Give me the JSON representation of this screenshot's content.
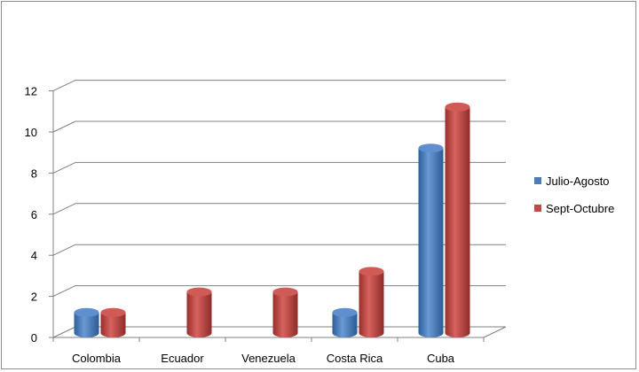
{
  "chart_data": {
    "type": "bar",
    "categories": [
      "Colombia",
      "Ecuador",
      "Venezuela",
      "Costa Rica",
      "Cuba"
    ],
    "series": [
      {
        "name": "Julio-Agosto",
        "values": [
          1,
          0,
          0,
          1,
          9
        ],
        "color": "#4a7ebb"
      },
      {
        "name": "Sept-Octubre",
        "values": [
          1,
          2,
          2,
          3,
          11
        ],
        "color": "#be4b48"
      }
    ],
    "ylim": [
      0,
      12
    ],
    "yticks": [
      "0",
      "2",
      "4",
      "6",
      "8",
      "10",
      "12"
    ],
    "grid": true,
    "legend_position": "right",
    "style": "3d-cylinder"
  }
}
